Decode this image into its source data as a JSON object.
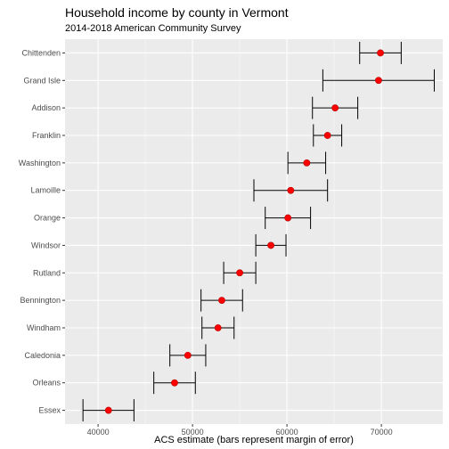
{
  "chart_data": {
    "type": "scatter",
    "title": "Household income by county in Vermont",
    "subtitle": "2014-2018 American Community Survey",
    "xlabel": "ACS estimate (bars represent margin of error)",
    "ylabel": "",
    "xlim": [
      36500,
      76500
    ],
    "xticks": [
      40000,
      50000,
      60000,
      70000
    ],
    "xtick_labels": [
      "40000",
      "50000",
      "60000",
      "70000"
    ],
    "grid": true,
    "legend": "none",
    "colors": {
      "panel": "#ebebeb",
      "grid_major": "#ffffff",
      "point": "#ff0000",
      "point_outline": "#b00000",
      "error_bar": "#000000"
    },
    "categories": [
      "Chittenden",
      "Grand Isle",
      "Addison",
      "Franklin",
      "Washington",
      "Lamoille",
      "Orange",
      "Windsor",
      "Rutland",
      "Bennington",
      "Windham",
      "Caledonia",
      "Orleans",
      "Essex"
    ],
    "estimates": [
      69900,
      69700,
      65100,
      64300,
      62100,
      60400,
      60100,
      58300,
      55000,
      53100,
      52700,
      49500,
      48100,
      41100
    ],
    "moe": [
      2200,
      5900,
      2400,
      1500,
      2000,
      3900,
      2400,
      1600,
      1700,
      2200,
      1700,
      1900,
      2200,
      2700
    ]
  }
}
